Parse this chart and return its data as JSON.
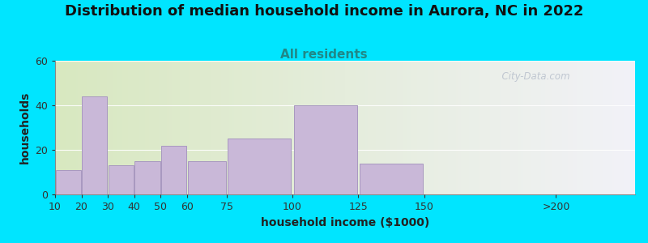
{
  "title": "Distribution of median household income in Aurora, NC in 2022",
  "subtitle": "All residents",
  "xlabel": "household income ($1000)",
  "ylabel": "households",
  "title_fontsize": 13,
  "subtitle_fontsize": 11,
  "label_fontsize": 10,
  "tick_fontsize": 9,
  "bin_edges": [
    10,
    20,
    30,
    40,
    50,
    60,
    75,
    100,
    125,
    150,
    200,
    250
  ],
  "bar_values": [
    11,
    44,
    13,
    15,
    22,
    15,
    25,
    40,
    14,
    0,
    0
  ],
  "tick_positions": [
    10,
    20,
    30,
    40,
    50,
    60,
    75,
    100,
    125,
    150,
    200
  ],
  "tick_labels": [
    "10",
    "20",
    "30",
    "40",
    "50",
    "60",
    "75",
    "100",
    "125",
    "150",
    ">200"
  ],
  "bar_color": "#c9b8d8",
  "bar_edge_color": "#a898c0",
  "ylim": [
    0,
    60
  ],
  "yticks": [
    0,
    20,
    40,
    60
  ],
  "xlim": [
    10,
    230
  ],
  "background_outer": "#00e5ff",
  "background_inner_left": "#d8e8c0",
  "background_inner_right": "#f2f2f8",
  "watermark_text": "  City-Data.com",
  "watermark_color": "#b8c0cc",
  "subtitle_color": "#208888"
}
